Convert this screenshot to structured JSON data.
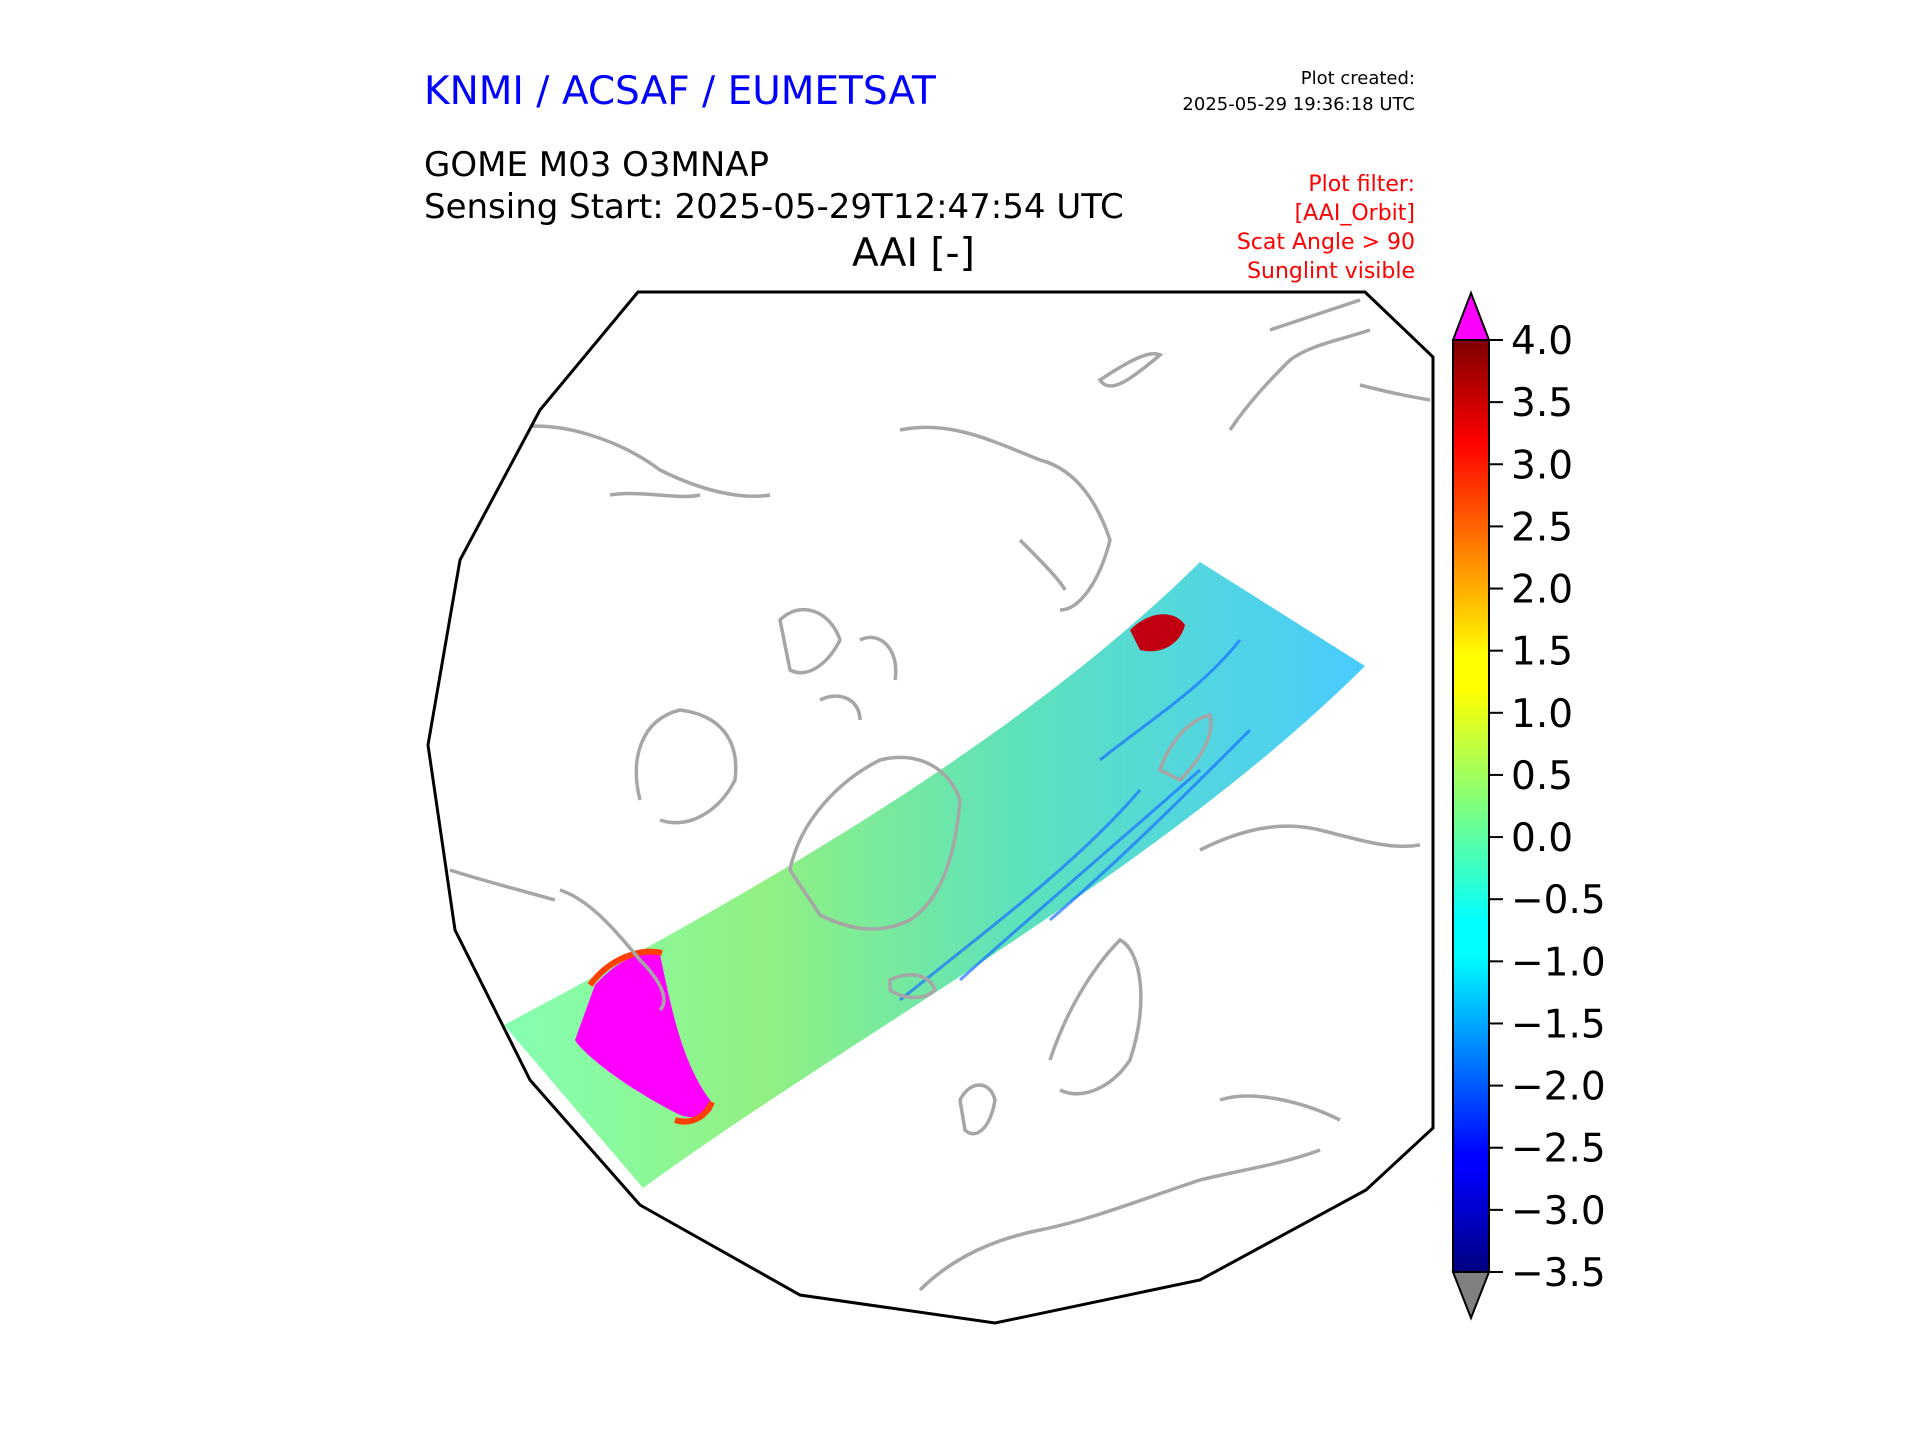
{
  "header": {
    "organization": "KNMI / ACSAF / EUMETSAT",
    "plot_created_label": "Plot created:",
    "plot_created_time": "2025-05-29 19:36:18 UTC",
    "product": "GOME M03 O3MNAP",
    "sensing_start": "Sensing Start: 2025-05-29T12:47:54 UTC",
    "variable": "AAI [-]"
  },
  "plot_filter": {
    "title": "Plot filter:",
    "lines": [
      "[AAI_Orbit]",
      "Scat Angle > 90",
      "Sunglint visible"
    ]
  },
  "colorbar": {
    "min": -3.5,
    "max": 4.0,
    "ticks": [
      {
        "value": 4.0,
        "label": "4.0"
      },
      {
        "value": 3.5,
        "label": "3.5"
      },
      {
        "value": 3.0,
        "label": "3.0"
      },
      {
        "value": 2.5,
        "label": "2.5"
      },
      {
        "value": 2.0,
        "label": "2.0"
      },
      {
        "value": 1.5,
        "label": "1.5"
      },
      {
        "value": 1.0,
        "label": "1.0"
      },
      {
        "value": 0.5,
        "label": "0.5"
      },
      {
        "value": 0.0,
        "label": "0.0"
      },
      {
        "value": -0.5,
        "label": "−0.5"
      },
      {
        "value": -1.0,
        "label": "−1.0"
      },
      {
        "value": -1.5,
        "label": "−1.5"
      },
      {
        "value": -2.0,
        "label": "−2.0"
      },
      {
        "value": -2.5,
        "label": "−2.5"
      },
      {
        "value": -3.0,
        "label": "−3.0"
      },
      {
        "value": -3.5,
        "label": "−3.5"
      }
    ],
    "colormap": "jet",
    "over_color": "#ff00ff",
    "under_color": "#808080"
  },
  "map": {
    "projection": "polar-stereographic",
    "coastline_color": "#a6a6a6",
    "border_color": "#000000"
  }
}
